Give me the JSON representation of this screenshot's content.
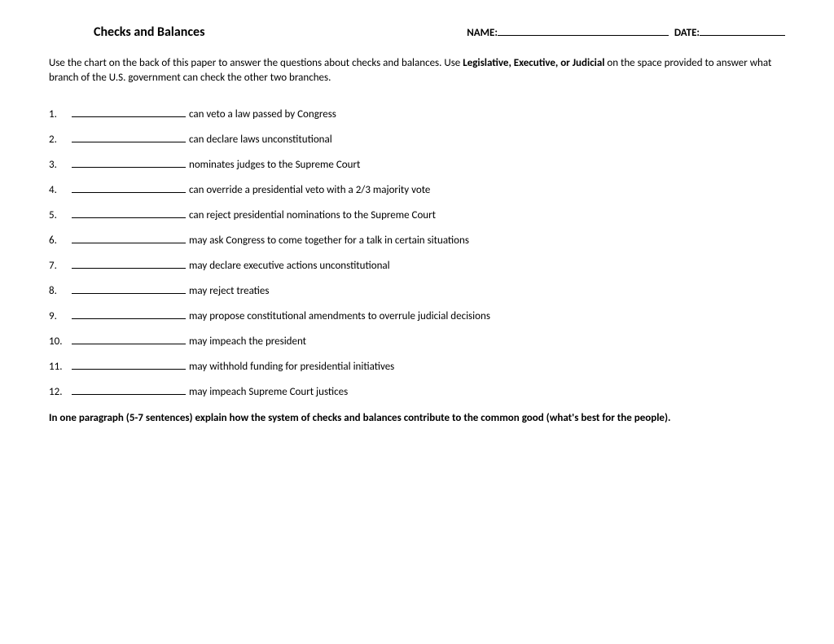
{
  "header": {
    "title": "Checks and Balances",
    "name_label": "NAME:",
    "date_label": "DATE:"
  },
  "instructions": {
    "part1": "Use the chart on the back of this paper to answer the questions about checks and balances. Use ",
    "bold": "Legislative, Executive, or Judicial",
    "part2": " on the space provided to answer what branch of the U.S. government can check the other two branches."
  },
  "questions": [
    {
      "text": " can veto a law passed by Congress"
    },
    {
      "text": " can declare laws unconstitutional"
    },
    {
      "text": " nominates judges to the Supreme Court"
    },
    {
      "text": " can override a presidential veto with a 2/3 majority vote"
    },
    {
      "text": " can reject presidential nominations to the Supreme Court"
    },
    {
      "text": "  may ask Congress to come together for a talk in certain situations"
    },
    {
      "text": " may declare executive actions unconstitutional"
    },
    {
      "text": " may reject treaties"
    },
    {
      "text": " may propose constitutional amendments to overrule judicial decisions"
    },
    {
      "text": " may impeach the president"
    },
    {
      "text": " may withhold funding for presidential initiatives"
    },
    {
      "text": " may impeach Supreme Court justices"
    }
  ],
  "essay_prompt": "In one paragraph (5-7 sentences) explain how the system of checks and balances contribute to the common good (what's best for the people)."
}
